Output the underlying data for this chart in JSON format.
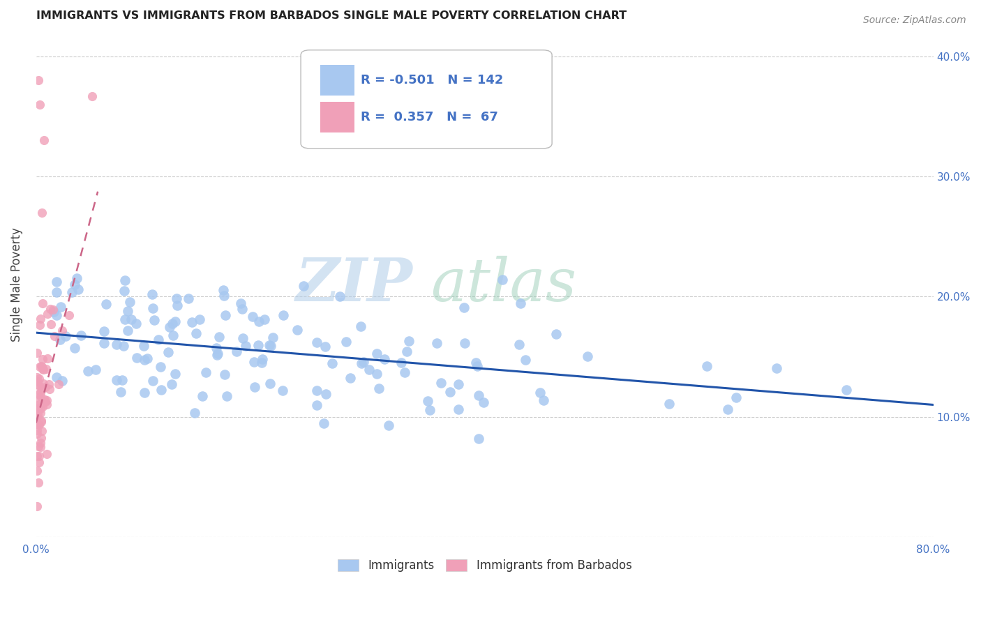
{
  "title": "IMMIGRANTS VS IMMIGRANTS FROM BARBADOS SINGLE MALE POVERTY CORRELATION CHART",
  "source": "Source: ZipAtlas.com",
  "ylabel": "Single Male Poverty",
  "x_min": 0.0,
  "x_max": 0.8,
  "y_min": 0.0,
  "y_max": 0.42,
  "x_tick_positions": [
    0.0,
    0.1,
    0.2,
    0.3,
    0.4,
    0.5,
    0.6,
    0.7,
    0.8
  ],
  "x_tick_labels": [
    "0.0%",
    "",
    "",
    "",
    "",
    "",
    "",
    "",
    "80.0%"
  ],
  "y_tick_positions": [
    0.0,
    0.1,
    0.2,
    0.3,
    0.4
  ],
  "y_tick_labels": [
    "",
    "10.0%",
    "20.0%",
    "30.0%",
    "40.0%"
  ],
  "grid_color": "#cccccc",
  "background_color": "#ffffff",
  "scatter_blue_color": "#a8c8f0",
  "scatter_pink_color": "#f0a0b8",
  "line_blue_color": "#2255aa",
  "line_pink_color": "#cc6688",
  "watermark_zip": "ZIP",
  "watermark_atlas": "atlas",
  "legend_R1": "-0.501",
  "legend_N1": "142",
  "legend_R2": "0.357",
  "legend_N2": "67",
  "legend_label1": "Immigrants",
  "legend_label2": "Immigrants from Barbados",
  "blue_intercept": 0.17,
  "blue_slope": -0.075,
  "pink_intercept": 0.095,
  "pink_slope": 3.5,
  "title_color": "#222222",
  "source_color": "#888888",
  "tick_color": "#4472c4",
  "ylabel_color": "#444444"
}
